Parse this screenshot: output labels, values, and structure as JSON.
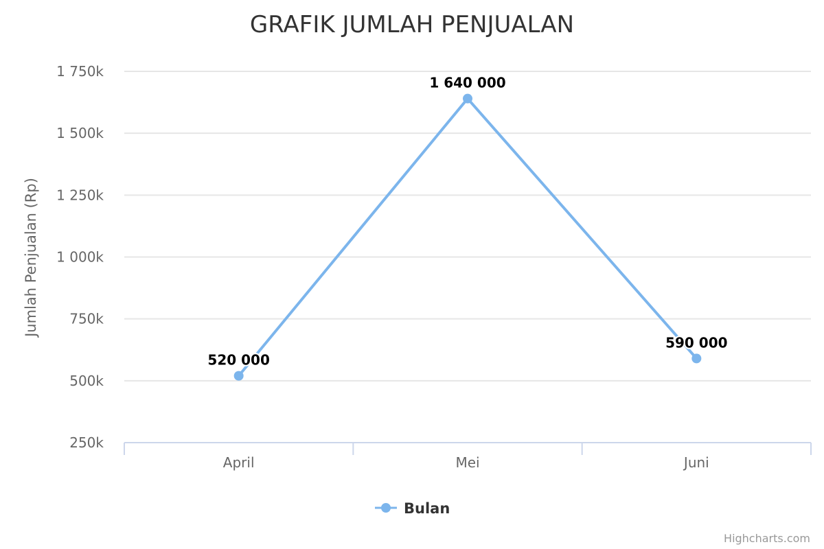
{
  "chart_data": {
    "type": "line",
    "title": "GRAFIK JUMLAH PENJUALAN",
    "xlabel": "",
    "ylabel": "Jumlah Penjualan (Rp)",
    "categories": [
      "April",
      "Mei",
      "Juni"
    ],
    "series": [
      {
        "name": "Bulan",
        "values": [
          520000,
          1640000,
          590000
        ],
        "data_labels": [
          "520 000",
          "1 640 000",
          "590 000"
        ]
      }
    ],
    "ylim": [
      250000,
      1750000
    ],
    "yticks": [
      250000,
      500000,
      750000,
      1000000,
      1250000,
      1500000,
      1750000
    ],
    "ytick_labels": [
      "250k",
      "500k",
      "750k",
      "1 000k",
      "1 250k",
      "1 500k",
      "1 750k"
    ],
    "grid": true,
    "legend_position": "bottom-center",
    "series_color": "#7cb5ec",
    "grid_color": "#e6e6e6",
    "axis_color": "#ccd6eb"
  },
  "credits": "Highcharts.com"
}
